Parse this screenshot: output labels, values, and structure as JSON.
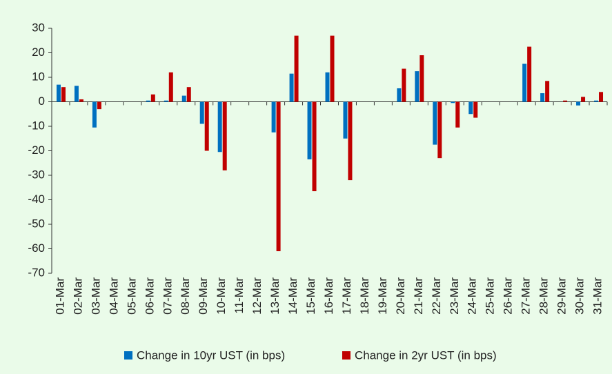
{
  "chart_data": {
    "type": "bar",
    "categories": [
      "01-Mar",
      "02-Mar",
      "03-Mar",
      "04-Mar",
      "05-Mar",
      "06-Mar",
      "07-Mar",
      "08-Mar",
      "09-Mar",
      "10-Mar",
      "11-Mar",
      "12-Mar",
      "13-Mar",
      "14-Mar",
      "15-Mar",
      "16-Mar",
      "17-Mar",
      "18-Mar",
      "19-Mar",
      "20-Mar",
      "21-Mar",
      "22-Mar",
      "23-Mar",
      "24-Mar",
      "25-Mar",
      "26-Mar",
      "27-Mar",
      "28-Mar",
      "29-Mar",
      "30-Mar",
      "31-Mar"
    ],
    "series": [
      {
        "name": "Change in 10yr UST (in bps)",
        "color": "#0070c0",
        "values": [
          7,
          6.5,
          -10.5,
          0,
          0,
          0.5,
          0.5,
          2.5,
          -9,
          -20.5,
          0,
          0,
          -12.5,
          11.5,
          -23.5,
          12,
          -15,
          0,
          0,
          5.5,
          12.5,
          -17.5,
          -0.5,
          -5,
          0,
          0,
          15.5,
          3.5,
          0,
          -1.5,
          0.5
        ]
      },
      {
        "name": "Change in 2yr UST (in bps)",
        "color": "#c00000",
        "values": [
          6,
          1,
          -3,
          0,
          0,
          3,
          12,
          6,
          -20,
          -28,
          0,
          0,
          -61,
          27,
          -36.5,
          27,
          -32,
          0,
          0,
          13.5,
          19,
          -23,
          -10.5,
          -6.5,
          0,
          0,
          22.5,
          8.5,
          0.5,
          2,
          4
        ]
      }
    ],
    "ylim": [
      -70,
      30
    ],
    "yticks": [
      -70,
      -60,
      -50,
      -40,
      -30,
      -20,
      -10,
      0,
      10,
      20,
      30
    ],
    "legend": "bottom"
  }
}
